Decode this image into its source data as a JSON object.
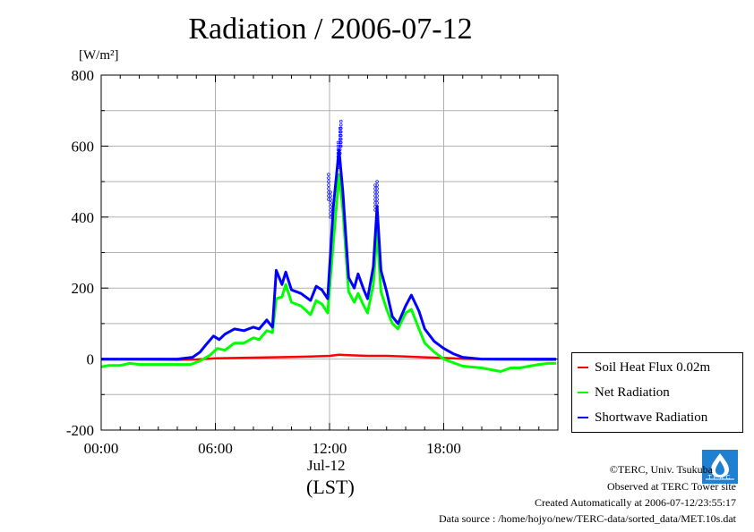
{
  "chart_data": {
    "type": "line",
    "title": "Radiation / 2006-07-12",
    "ylabel_unit": "[W/m²]",
    "ylim": [
      -200,
      800
    ],
    "yticks": [
      -200,
      0,
      200,
      400,
      600,
      800
    ],
    "xlim_hours": [
      0,
      24
    ],
    "xticks": [
      {
        "h": 0,
        "label": "00:00"
      },
      {
        "h": 6,
        "label": "06:00"
      },
      {
        "h": 12,
        "label": "12:00"
      },
      {
        "h": 18,
        "label": "18:00"
      }
    ],
    "xdate_label": "Jul-12",
    "xunit_label": "(LST)",
    "grid": true,
    "legend_position": "right-bottom",
    "series": [
      {
        "name": "Soil Heat Flux 0.02m",
        "color": "#ff0000",
        "x": [
          0,
          2,
          4,
          5,
          6,
          7,
          8,
          9,
          10,
          11,
          12,
          12.5,
          13,
          14,
          15,
          16,
          17,
          18,
          19,
          20,
          21,
          22,
          23,
          23.9
        ],
        "y": [
          -1,
          -1,
          -2,
          -1,
          2,
          3,
          4,
          5,
          6,
          7,
          9,
          12,
          11,
          9,
          9,
          7,
          5,
          3,
          1,
          0,
          -1,
          -1,
          -2,
          -2
        ]
      },
      {
        "name": "Net Radiation",
        "color": "#00ff00",
        "x": [
          0,
          0.4,
          1,
          1.5,
          2,
          3,
          4,
          4.7,
          5.2,
          5.7,
          6.1,
          6.5,
          7,
          7.5,
          8,
          8.3,
          8.7,
          9,
          9.2,
          9.5,
          9.7,
          10,
          10.5,
          11,
          11.3,
          11.6,
          11.9,
          12.2,
          12.5,
          12.7,
          13,
          13.3,
          13.5,
          13.8,
          14,
          14.3,
          14.5,
          14.7,
          15,
          15.3,
          15.6,
          16,
          16.3,
          16.7,
          17,
          17.5,
          18,
          18.5,
          19,
          20,
          21,
          21.5,
          22,
          22.5,
          23,
          23.5,
          23.9
        ],
        "y": [
          -22,
          -18,
          -18,
          -12,
          -15,
          -15,
          -15,
          -15,
          -5,
          10,
          30,
          25,
          45,
          45,
          60,
          55,
          80,
          75,
          170,
          175,
          210,
          160,
          150,
          125,
          165,
          155,
          130,
          330,
          520,
          420,
          190,
          160,
          185,
          150,
          130,
          210,
          360,
          190,
          140,
          100,
          85,
          130,
          140,
          85,
          45,
          20,
          0,
          -10,
          -20,
          -25,
          -35,
          -25,
          -25,
          -20,
          -15,
          -12,
          -12
        ]
      },
      {
        "name": "Shortwave Radiation",
        "color": "#0000ff",
        "x": [
          0,
          2,
          4,
          4.8,
          5.2,
          5.5,
          5.9,
          6.2,
          6.5,
          7,
          7.5,
          8,
          8.3,
          8.7,
          9,
          9.2,
          9.5,
          9.7,
          10,
          10.5,
          11,
          11.3,
          11.6,
          11.9,
          12.2,
          12.5,
          12.7,
          13,
          13.3,
          13.5,
          13.8,
          14,
          14.3,
          14.5,
          14.7,
          15,
          15.3,
          15.6,
          16,
          16.3,
          16.7,
          17,
          17.5,
          18,
          18.5,
          19,
          20,
          21,
          22,
          23,
          23.9
        ],
        "y": [
          0,
          0,
          0,
          5,
          20,
          40,
          65,
          55,
          70,
          85,
          80,
          90,
          85,
          110,
          90,
          250,
          210,
          245,
          195,
          185,
          165,
          205,
          195,
          170,
          430,
          590,
          470,
          230,
          200,
          240,
          195,
          170,
          260,
          430,
          250,
          190,
          120,
          100,
          150,
          180,
          135,
          85,
          50,
          30,
          15,
          5,
          0,
          0,
          0,
          0,
          0
        ]
      }
    ],
    "shortwave_spikes": [
      {
        "x": 11.95,
        "y": 520
      },
      {
        "x": 12.05,
        "y": 470
      },
      {
        "x": 12.45,
        "y": 610
      },
      {
        "x": 12.55,
        "y": 650
      },
      {
        "x": 12.6,
        "y": 670
      },
      {
        "x": 14.4,
        "y": 490
      },
      {
        "x": 14.5,
        "y": 500
      }
    ]
  },
  "footer": {
    "copyright": "©TERC, Univ. Tsukuba",
    "observed": "Observed at TERC Tower site",
    "created": "Created Automatically at 2006-07-12/23:55:17",
    "source": "Data source : /home/hojyo/new/TERC-data/sorted_data/MET.10s.dat",
    "logo_text": "TERC"
  }
}
